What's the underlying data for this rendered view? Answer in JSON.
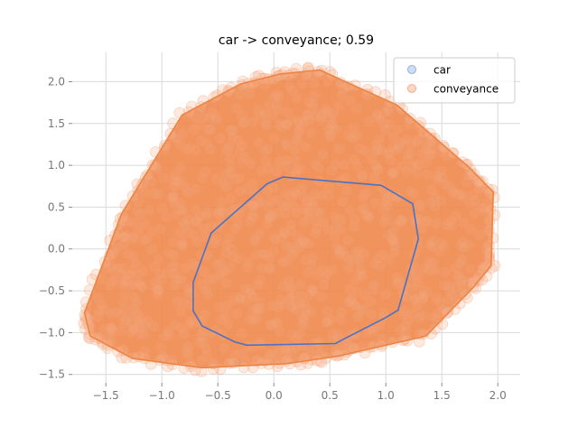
{
  "chart_data": {
    "type": "scatter",
    "title": "car -> conveyance; 0.59",
    "xlabel": "",
    "ylabel": "",
    "xlim": [
      -1.8,
      2.2
    ],
    "ylim": [
      -1.6,
      2.35
    ],
    "x_ticks": [
      -1.5,
      -1.0,
      -0.5,
      0.0,
      0.5,
      1.0,
      1.5,
      2.0
    ],
    "x_tick_labels": [
      "−1.5",
      "−1.0",
      "−0.5",
      "0.0",
      "0.5",
      "1.0",
      "1.5",
      "2.0"
    ],
    "y_ticks": [
      -1.5,
      -1.0,
      -0.5,
      0.0,
      0.5,
      1.0,
      1.5,
      2.0
    ],
    "y_tick_labels": [
      "−1.5",
      "−1.0",
      "−0.5",
      "0.0",
      "0.5",
      "1.0",
      "1.5",
      "2.0"
    ],
    "grid": true,
    "legend_position": "top-right",
    "legend": [
      {
        "label": "car",
        "color": "#aec7e8"
      },
      {
        "label": "conveyance",
        "color": "#ffbb99"
      }
    ],
    "series": [
      {
        "name": "car",
        "color": "#4c72c4",
        "hull": [
          [
            0.08,
            0.86
          ],
          [
            0.96,
            0.76
          ],
          [
            1.24,
            0.54
          ],
          [
            1.29,
            0.12
          ],
          [
            1.11,
            -0.73
          ],
          [
            1.0,
            -0.82
          ],
          [
            0.62,
            -1.08
          ],
          [
            0.55,
            -1.13
          ],
          [
            -0.24,
            -1.15
          ],
          [
            -0.35,
            -1.11
          ],
          [
            -0.64,
            -0.92
          ],
          [
            -0.72,
            -0.74
          ],
          [
            -0.72,
            -0.4
          ],
          [
            -0.56,
            0.19
          ],
          [
            -0.06,
            0.78
          ]
        ]
      },
      {
        "name": "conveyance",
        "color": "#ec8444",
        "hull": [
          [
            0.41,
            2.14
          ],
          [
            1.1,
            1.72
          ],
          [
            1.74,
            0.98
          ],
          [
            1.96,
            0.68
          ],
          [
            1.94,
            -0.2
          ],
          [
            1.78,
            -0.46
          ],
          [
            1.36,
            -1.04
          ],
          [
            0.58,
            -1.28
          ],
          [
            0.12,
            -1.37
          ],
          [
            -0.64,
            -1.42
          ],
          [
            -1.26,
            -1.31
          ],
          [
            -1.64,
            -1.04
          ],
          [
            -1.69,
            -0.76
          ],
          [
            -1.36,
            0.42
          ],
          [
            -0.82,
            1.6
          ],
          [
            -0.3,
            1.97
          ],
          [
            0.05,
            2.09
          ]
        ]
      }
    ]
  }
}
